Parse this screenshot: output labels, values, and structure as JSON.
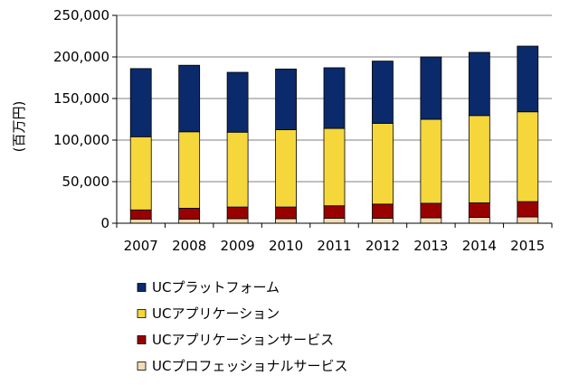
{
  "chart_data": {
    "type": "bar",
    "stacked": true,
    "title": "",
    "xlabel": "",
    "ylabel": "(百万円)",
    "ylim": [
      0,
      250000
    ],
    "ytick_values": [
      0,
      50000,
      100000,
      150000,
      200000,
      250000
    ],
    "ytick_labels": [
      "0",
      "50,000",
      "100,000",
      "150,000",
      "200,000",
      "250,000"
    ],
    "categories": [
      "2007",
      "2008",
      "2009",
      "2010",
      "2011",
      "2012",
      "2013",
      "2014",
      "2015"
    ],
    "series": [
      {
        "name": "UCプロフェッショナルサービス",
        "color": "#F2DCB3",
        "values": [
          5000,
          5000,
          5500,
          5500,
          6000,
          6000,
          6500,
          7000,
          7500
        ]
      },
      {
        "name": "UCアプリケーションサービス",
        "color": "#990000",
        "values": [
          11000,
          13000,
          14000,
          14000,
          15000,
          17000,
          17500,
          17500,
          18500
        ]
      },
      {
        "name": "UCアプリケーション",
        "color": "#F5D73C",
        "values": [
          88000,
          92000,
          90000,
          93000,
          93000,
          97000,
          101000,
          105000,
          108000
        ]
      },
      {
        "name": "UCプラットフォーム",
        "color": "#0B2A6B",
        "values": [
          82000,
          80000,
          72000,
          73000,
          73000,
          75000,
          75000,
          76000,
          79000
        ]
      }
    ],
    "legend_order": [
      3,
      2,
      1,
      0
    ],
    "legend_position": "bottom-left",
    "grid": true,
    "plot_background": "#ffffff",
    "axis_color": "#000000"
  }
}
